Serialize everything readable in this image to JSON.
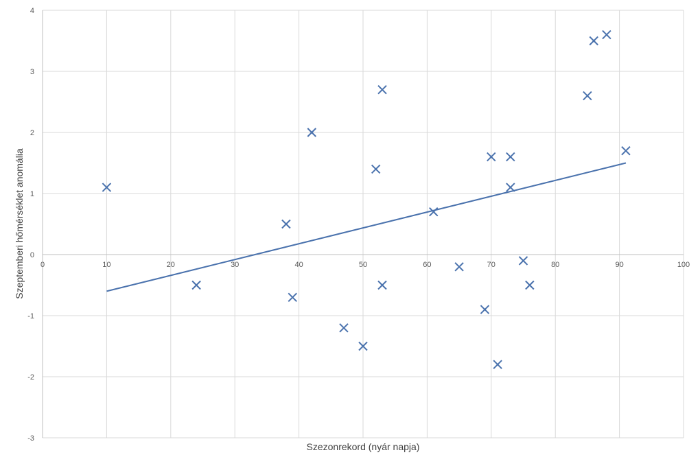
{
  "chart_data": {
    "type": "scatter",
    "title": "",
    "xlabel": "Szezonrekord  (nyár napja)",
    "ylabel": "Szeptemberi hőmérséklet anomália",
    "xlim": [
      0,
      100
    ],
    "ylim": [
      -3,
      4
    ],
    "x_ticks": [
      "0",
      "10",
      "20",
      "30",
      "40",
      "50",
      "60",
      "70",
      "80",
      "90",
      "100"
    ],
    "y_ticks": [
      "-3",
      "-2",
      "-1",
      "0",
      "1",
      "2",
      "3",
      "4"
    ],
    "grid": true,
    "legend": "none",
    "marker": "x",
    "colors": {
      "series": "#4a72ad",
      "grid": "#d9d9d9",
      "axis": "#bfbfbf",
      "text": "#595959"
    },
    "series": [
      {
        "points": [
          {
            "x": 10,
            "y": 1.1
          },
          {
            "x": 24,
            "y": -0.5
          },
          {
            "x": 38,
            "y": 0.5
          },
          {
            "x": 39,
            "y": -0.7
          },
          {
            "x": 42,
            "y": 2.0
          },
          {
            "x": 47,
            "y": -1.2
          },
          {
            "x": 50,
            "y": -1.5
          },
          {
            "x": 52,
            "y": 1.4
          },
          {
            "x": 53,
            "y": 2.7
          },
          {
            "x": 53,
            "y": -0.5
          },
          {
            "x": 61,
            "y": 0.7
          },
          {
            "x": 65,
            "y": -0.2
          },
          {
            "x": 69,
            "y": -0.9
          },
          {
            "x": 70,
            "y": 1.6
          },
          {
            "x": 71,
            "y": -1.8
          },
          {
            "x": 73,
            "y": 1.6
          },
          {
            "x": 73,
            "y": 1.1
          },
          {
            "x": 75,
            "y": -0.1
          },
          {
            "x": 76,
            "y": -0.5
          },
          {
            "x": 85,
            "y": 2.6
          },
          {
            "x": 86,
            "y": 3.5
          },
          {
            "x": 88,
            "y": 3.6
          },
          {
            "x": 91,
            "y": 1.7
          }
        ]
      }
    ],
    "trendline": {
      "type": "linear",
      "from": {
        "x": 10,
        "y": -0.6
      },
      "to": {
        "x": 91,
        "y": 1.5
      }
    }
  }
}
